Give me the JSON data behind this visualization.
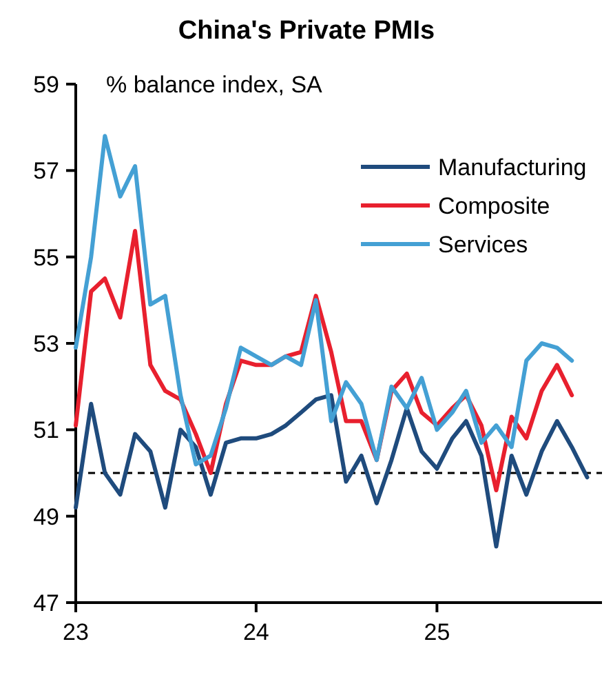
{
  "chart_data": {
    "type": "line",
    "title": "China's Private PMIs",
    "ylabel": "% balance index, SA",
    "x": [
      "2023-01",
      "2023-02",
      "2023-03",
      "2023-04",
      "2023-05",
      "2023-06",
      "2023-07",
      "2023-08",
      "2023-09",
      "2023-10",
      "2023-11",
      "2023-12",
      "2024-01",
      "2024-02",
      "2024-03",
      "2024-04",
      "2024-05",
      "2024-06",
      "2024-07",
      "2024-08",
      "2024-09",
      "2024-10",
      "2024-11",
      "2024-12",
      "2025-01",
      "2025-02",
      "2025-03",
      "2025-04",
      "2025-05",
      "2025-06",
      "2025-07",
      "2025-08",
      "2025-09",
      "2025-10",
      "2025-11"
    ],
    "series": [
      {
        "name": "Manufacturing",
        "color": "#1f4b7d",
        "values": [
          49.2,
          51.6,
          50.0,
          49.5,
          50.9,
          50.5,
          49.2,
          51.0,
          50.6,
          49.5,
          50.7,
          50.8,
          50.8,
          50.9,
          51.1,
          51.4,
          51.7,
          51.8,
          49.8,
          50.4,
          49.3,
          50.3,
          51.5,
          50.5,
          50.1,
          50.8,
          51.2,
          50.4,
          48.3,
          50.4,
          49.5,
          50.5,
          51.2,
          50.6,
          49.9
        ]
      },
      {
        "name": "Composite",
        "color": "#e8202e",
        "values": [
          51.1,
          54.2,
          54.5,
          53.6,
          55.6,
          52.5,
          51.9,
          51.7,
          50.9,
          50.0,
          51.6,
          52.6,
          52.5,
          52.5,
          52.7,
          52.8,
          54.1,
          52.8,
          51.2,
          51.2,
          50.3,
          51.9,
          52.3,
          51.4,
          51.1,
          51.5,
          51.8,
          51.1,
          49.6,
          51.3,
          50.8,
          51.9,
          52.5,
          51.8,
          null
        ]
      },
      {
        "name": "Services",
        "color": "#44a0d4",
        "values": [
          52.9,
          55.0,
          57.8,
          56.4,
          57.1,
          53.9,
          54.1,
          51.8,
          50.2,
          50.4,
          51.5,
          52.9,
          52.7,
          52.5,
          52.7,
          52.5,
          54.0,
          51.2,
          52.1,
          51.6,
          50.3,
          52.0,
          51.5,
          52.2,
          51.0,
          51.4,
          51.9,
          50.7,
          51.1,
          50.6,
          52.6,
          53.0,
          52.9,
          52.6,
          null
        ]
      }
    ],
    "xlim": [
      "2023-01",
      "2025-12"
    ],
    "xticks": [
      {
        "value": "2023-01",
        "label": "23"
      },
      {
        "value": "2024-01",
        "label": "24"
      },
      {
        "value": "2025-01",
        "label": "25"
      }
    ],
    "ylim": [
      47,
      59
    ],
    "yticks": [
      47,
      49,
      51,
      53,
      55,
      57,
      59
    ],
    "ref_lines": [
      {
        "axis": "y",
        "value": 50,
        "color": "#000000",
        "line_style": "dashed"
      }
    ],
    "legend": "top right",
    "marker": "none",
    "line_style": "solid",
    "grid": false
  }
}
